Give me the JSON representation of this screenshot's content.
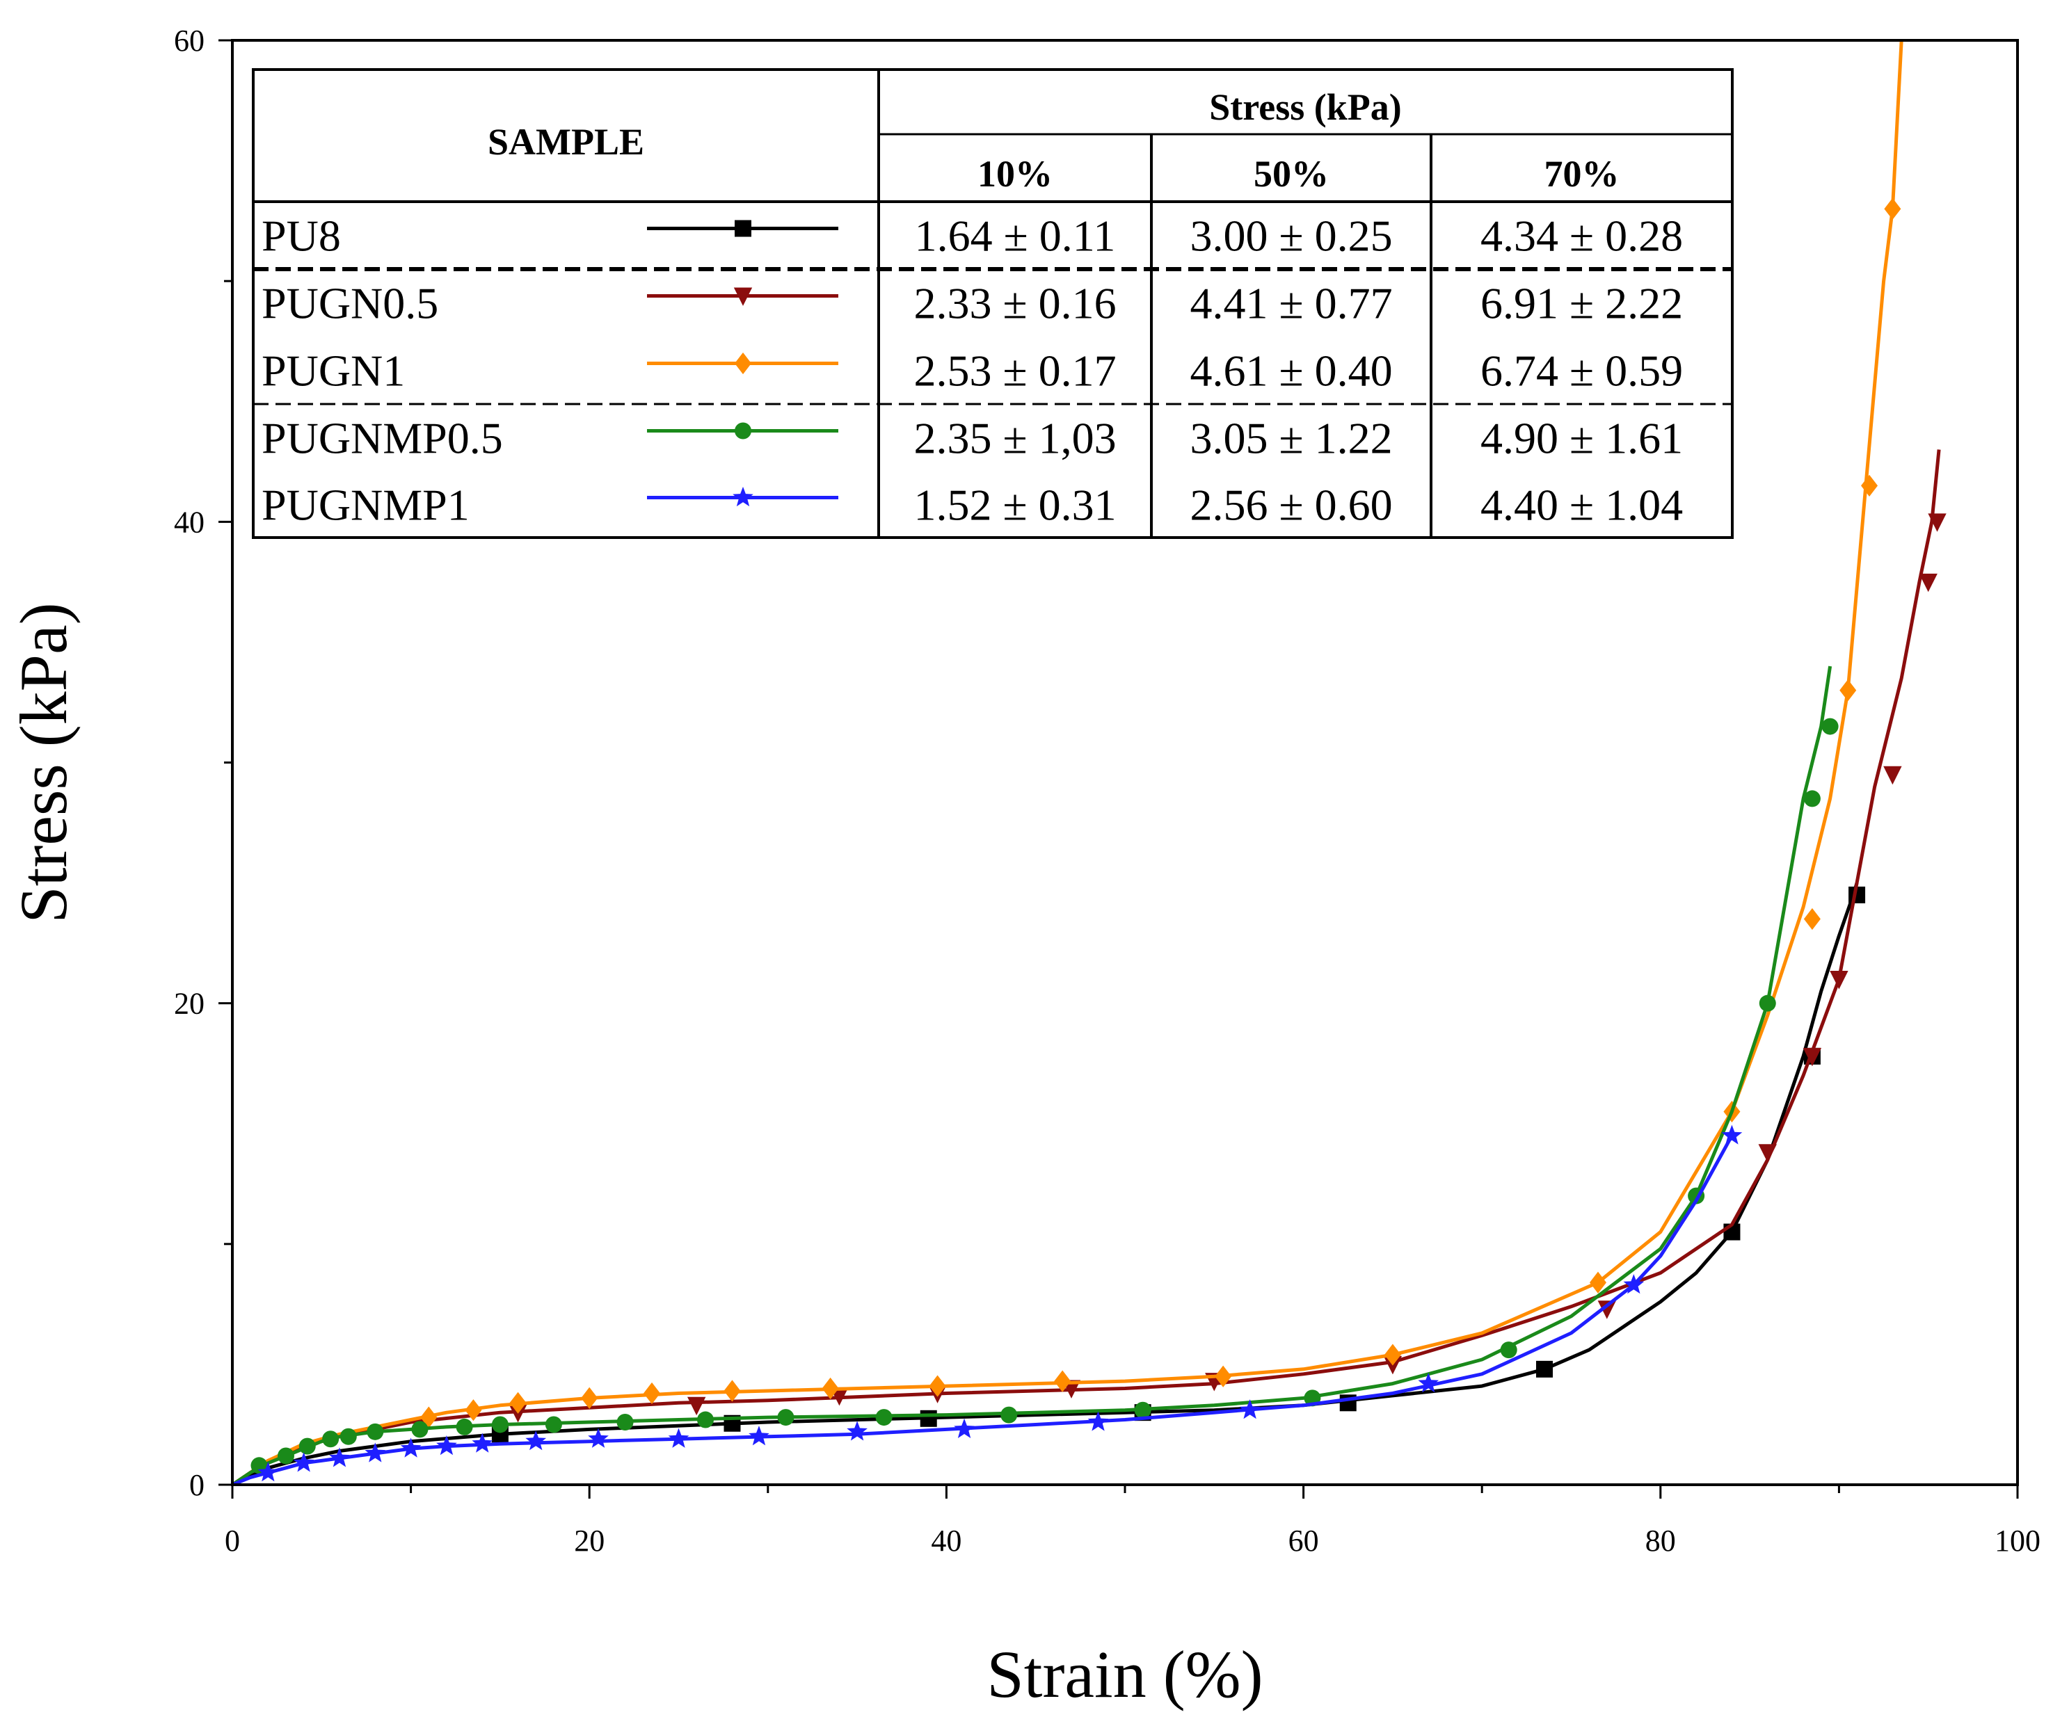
{
  "chart_data": {
    "type": "line",
    "title": "",
    "xlabel": "Strain (%)",
    "ylabel": "Stress (kPa)",
    "xlim": [
      0,
      100
    ],
    "ylim": [
      0,
      60
    ],
    "xticks": [
      "0",
      "20",
      "40",
      "60",
      "80",
      "100"
    ],
    "yticks": [
      "0",
      "20",
      "40",
      "60"
    ],
    "series": [
      {
        "name": "PU8",
        "color": "#000000",
        "marker": "square",
        "x": [
          0,
          2,
          4,
          6,
          8,
          10,
          15,
          20,
          30,
          40,
          50,
          55,
          60,
          62.5,
          65,
          70,
          73.5,
          76,
          78,
          80,
          82,
          84,
          86,
          88,
          89,
          90,
          90.8,
          91
        ],
        "y": [
          0,
          0.7,
          1.1,
          1.4,
          1.6,
          1.8,
          2.1,
          2.3,
          2.6,
          2.8,
          3.0,
          3.1,
          3.3,
          3.5,
          3.7,
          4.1,
          4.8,
          5.6,
          6.6,
          7.6,
          8.8,
          10.5,
          13.5,
          17.8,
          20.5,
          22.8,
          24.5,
          25.0
        ],
        "marker_x": [
          15,
          28,
          39,
          51,
          62.5,
          73.5,
          84,
          88.5,
          91
        ],
        "marker_y": [
          2.1,
          2.55,
          2.75,
          3.0,
          3.4,
          4.8,
          10.5,
          17.8,
          24.5
        ]
      },
      {
        "name": "PUGN0.5",
        "color": "#8b0d0d",
        "marker": "triangle-down",
        "x": [
          0,
          2,
          4,
          6,
          8,
          10,
          15,
          20,
          25,
          30,
          40,
          50,
          55,
          60,
          65,
          70,
          75,
          80,
          84,
          86,
          88,
          90,
          92,
          93.5,
          94.5,
          95.2,
          95.6
        ],
        "y": [
          0,
          1.0,
          1.6,
          2.0,
          2.3,
          2.6,
          3.0,
          3.2,
          3.4,
          3.5,
          3.8,
          4.0,
          4.2,
          4.6,
          5.1,
          6.2,
          7.4,
          8.8,
          10.8,
          13.5,
          17.0,
          21.0,
          29.0,
          33.5,
          37.5,
          40.0,
          43.0
        ],
        "marker_x": [
          16,
          26,
          34,
          39.5,
          47,
          55,
          65,
          77,
          86,
          88.5,
          90,
          93,
          95,
          95.5
        ],
        "marker_y": [
          3.0,
          3.3,
          3.7,
          3.8,
          4.0,
          4.3,
          5.0,
          7.3,
          13.8,
          17.8,
          21.0,
          29.5,
          37.5,
          40.0
        ]
      },
      {
        "name": "PUGN1",
        "color": "#ff8c00",
        "marker": "diamond",
        "x": [
          0,
          2,
          4,
          6,
          8,
          10,
          12,
          15,
          20,
          25,
          30,
          40,
          50,
          55,
          60,
          65,
          70,
          76.5,
          80,
          84,
          86,
          88,
          89.5,
          90.5,
          91.5,
          92.5,
          93,
          93.5
        ],
        "y": [
          0,
          1.0,
          1.7,
          2.1,
          2.4,
          2.7,
          3.0,
          3.3,
          3.6,
          3.8,
          3.9,
          4.1,
          4.3,
          4.5,
          4.8,
          5.4,
          6.3,
          8.4,
          10.5,
          15.5,
          19.5,
          24.0,
          28.5,
          33.0,
          41.5,
          50.0,
          53.0,
          60.0
        ],
        "marker_x": [
          11,
          13.5,
          16,
          20,
          23.5,
          28,
          33.5,
          39.5,
          46.5,
          55.5,
          65,
          76.5,
          84,
          88.5,
          90.5,
          91.7,
          93
        ],
        "marker_y": [
          2.8,
          3.1,
          3.4,
          3.6,
          3.8,
          3.9,
          4.0,
          4.1,
          4.3,
          4.5,
          5.4,
          8.4,
          15.5,
          23.5,
          33.0,
          41.5,
          53.0
        ]
      },
      {
        "name": "PUGNMP0.5",
        "color": "#1a8a1a",
        "marker": "circle",
        "x": [
          0,
          1,
          2,
          3,
          4,
          5,
          6,
          7,
          8,
          10,
          12,
          15,
          20,
          25,
          30,
          40,
          45,
          50,
          55,
          60,
          65,
          70,
          75,
          80,
          82,
          84,
          86,
          88,
          89,
          89.5
        ],
        "y": [
          0,
          0.5,
          0.9,
          1.2,
          1.5,
          1.8,
          2.0,
          2.1,
          2.2,
          2.3,
          2.4,
          2.5,
          2.6,
          2.7,
          2.8,
          2.9,
          3.0,
          3.1,
          3.3,
          3.6,
          4.2,
          5.2,
          7.0,
          9.8,
          12.0,
          15.5,
          20.0,
          28.5,
          31.5,
          34.0
        ],
        "marker_x": [
          1.5,
          3,
          4.2,
          5.5,
          6.5,
          8,
          10.5,
          13,
          15,
          18,
          22,
          26.5,
          31,
          36.5,
          43.5,
          51,
          60.5,
          71.5,
          82,
          86,
          88.5,
          89.5
        ],
        "marker_y": [
          0.8,
          1.2,
          1.6,
          1.9,
          2.0,
          2.2,
          2.3,
          2.4,
          2.5,
          2.5,
          2.6,
          2.7,
          2.8,
          2.8,
          2.9,
          3.1,
          3.6,
          5.6,
          12.0,
          20.0,
          28.5,
          31.5
        ]
      },
      {
        "name": "PUGNMP1",
        "color": "#1f1fff",
        "marker": "star",
        "x": [
          0,
          1,
          2,
          3,
          4,
          5,
          6,
          8,
          10,
          12,
          15,
          20,
          25,
          30,
          35,
          40,
          45,
          50,
          55,
          60,
          65,
          70,
          75,
          78.5,
          80,
          82,
          84
        ],
        "y": [
          0,
          0.3,
          0.5,
          0.7,
          0.9,
          1.0,
          1.1,
          1.3,
          1.5,
          1.6,
          1.7,
          1.8,
          1.9,
          2.0,
          2.1,
          2.3,
          2.5,
          2.7,
          3.0,
          3.3,
          3.8,
          4.6,
          6.3,
          8.3,
          9.5,
          11.8,
          14.5
        ],
        "marker_x": [
          2,
          4,
          6,
          8,
          10,
          12,
          14,
          17,
          20.5,
          25,
          29.5,
          35,
          41,
          48.5,
          57,
          67,
          78.5,
          84
        ],
        "marker_y": [
          0.5,
          0.9,
          1.1,
          1.3,
          1.5,
          1.6,
          1.7,
          1.8,
          1.9,
          1.9,
          2.0,
          2.2,
          2.3,
          2.6,
          3.1,
          4.2,
          8.3,
          14.5
        ]
      }
    ]
  },
  "table": {
    "sample_header": "SAMPLE",
    "stress_header": "Stress (kPa)",
    "columns": [
      "10%",
      "50%",
      "70%"
    ],
    "rows": [
      {
        "name": "PU8",
        "values": [
          "1.64 ± 0.11",
          "3.00 ± 0.25",
          "4.34 ± 0.28"
        ]
      },
      {
        "name": "PUGN0.5",
        "values": [
          "2.33 ± 0.16",
          "4.41 ± 0.77",
          "6.91 ± 2.22"
        ]
      },
      {
        "name": "PUGN1",
        "values": [
          "2.53 ± 0.17",
          "4.61 ± 0.40",
          "6.74 ± 0.59"
        ]
      },
      {
        "name": "PUGNMP0.5",
        "values": [
          "2.35 ± 1,03",
          "3.05 ± 1.22",
          "4.90 ± 1.61"
        ]
      },
      {
        "name": "PUGNMP1",
        "values": [
          "1.52 ± 0.31",
          "2.56 ± 0.60",
          "4.40 ± 1.04"
        ]
      }
    ]
  }
}
